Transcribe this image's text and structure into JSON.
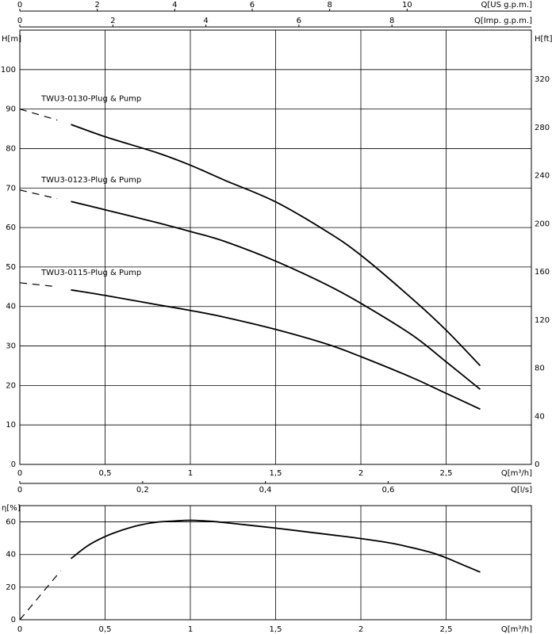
{
  "chart_data": [
    {
      "type": "line",
      "title": "",
      "xlabel": "Q[m³/h]",
      "ylabel": "H[m]",
      "xlim": [
        0,
        3
      ],
      "ylim": [
        0,
        110
      ],
      "x_ticks": [
        "0",
        "0,5",
        "1",
        "1,5",
        "2",
        "2,5"
      ],
      "x_tick_values": [
        0,
        0.5,
        1,
        1.5,
        2,
        2.5
      ],
      "y_ticks": [
        "0",
        "10",
        "20",
        "30",
        "40",
        "50",
        "60",
        "70",
        "80",
        "90",
        "100"
      ],
      "y_tick_values": [
        0,
        10,
        20,
        30,
        40,
        50,
        60,
        70,
        80,
        90,
        100
      ],
      "y2_label": "H[ft]",
      "y2_ticks": [
        "0",
        "40",
        "80",
        "120",
        "160",
        "200",
        "240",
        "280",
        "320"
      ],
      "y2_tick_values_ft": [
        0,
        40,
        80,
        120,
        160,
        200,
        240,
        280,
        320
      ],
      "top_axes": [
        {
          "label": "Q[US g.p.m.]",
          "ticks": [
            "0",
            "2",
            "4",
            "6",
            "8",
            "10"
          ],
          "tick_values": [
            0,
            2,
            4,
            6,
            8,
            10
          ]
        },
        {
          "label": "Q[Imp. g.p.m.]",
          "ticks": [
            "0",
            "2",
            "4",
            "6",
            "8"
          ],
          "tick_values": [
            0,
            2,
            4,
            6,
            8
          ]
        }
      ],
      "secondary_x": {
        "label": "Q[l/s]",
        "ticks": [
          "0",
          "0,2",
          "0,4",
          "0,6"
        ],
        "tick_values": [
          0,
          0.2,
          0.4,
          0.6
        ]
      },
      "grid": true,
      "series": [
        {
          "name": "TWU3-0130-Plug & Pump",
          "dashed": {
            "x": [
              0.0,
              0.22
            ],
            "y": [
              90.0,
              87.2
            ]
          },
          "x": [
            0.3,
            0.5,
            0.8,
            1.0,
            1.2,
            1.5,
            1.8,
            2.0,
            2.3,
            2.5,
            2.7
          ],
          "y": [
            86.1,
            83.0,
            79.0,
            75.8,
            72.0,
            66.5,
            59.0,
            53.0,
            42.0,
            34.0,
            25.0
          ]
        },
        {
          "name": "TWU3-0123-Plug & Pump",
          "dashed": {
            "x": [
              0.0,
              0.22
            ],
            "y": [
              69.5,
              67.3
            ]
          },
          "x": [
            0.3,
            0.5,
            0.8,
            1.0,
            1.2,
            1.5,
            1.8,
            2.0,
            2.3,
            2.5,
            2.7
          ],
          "y": [
            66.6,
            64.5,
            61.3,
            59.0,
            56.5,
            51.5,
            45.5,
            40.8,
            32.8,
            26.0,
            19.0
          ]
        },
        {
          "name": "TWU3-0115-Plug & Pump",
          "dashed": {
            "x": [
              0.0,
              0.22
            ],
            "y": [
              46.0,
              45.0
            ]
          },
          "x": [
            0.3,
            0.5,
            0.8,
            1.0,
            1.2,
            1.5,
            1.8,
            2.0,
            2.3,
            2.5,
            2.7
          ],
          "y": [
            44.2,
            42.8,
            40.5,
            39.0,
            37.3,
            34.2,
            30.5,
            27.3,
            22.0,
            18.0,
            14.0
          ]
        }
      ]
    },
    {
      "type": "line",
      "title": "",
      "xlabel": "Q[m³/h]",
      "ylabel": "η[%]",
      "xlim": [
        0,
        3
      ],
      "ylim": [
        0,
        70
      ],
      "x_ticks": [
        "0",
        "0,5",
        "1",
        "1,5",
        "2",
        "2,5"
      ],
      "x_tick_values": [
        0,
        0.5,
        1,
        1.5,
        2,
        2.5
      ],
      "y_ticks": [
        "0",
        "20",
        "40",
        "60"
      ],
      "y_tick_values": [
        0,
        20,
        40,
        60
      ],
      "grid": true,
      "series": [
        {
          "dashed": {
            "x": [
              0.0,
              0.24
            ],
            "y": [
              0.0,
              30.0
            ]
          },
          "x": [
            0.3,
            0.4,
            0.5,
            0.6,
            0.7,
            0.8,
            0.9,
            1.0,
            1.1,
            1.2,
            1.5,
            1.8,
            2.0,
            2.2,
            2.4,
            2.5,
            2.6,
            2.7
          ],
          "y": [
            37.5,
            45.5,
            51.0,
            55.0,
            58.0,
            59.8,
            60.5,
            61.0,
            60.5,
            59.6,
            56.2,
            52.4,
            49.8,
            46.5,
            41.6,
            38.0,
            33.6,
            29.2
          ]
        }
      ]
    }
  ]
}
